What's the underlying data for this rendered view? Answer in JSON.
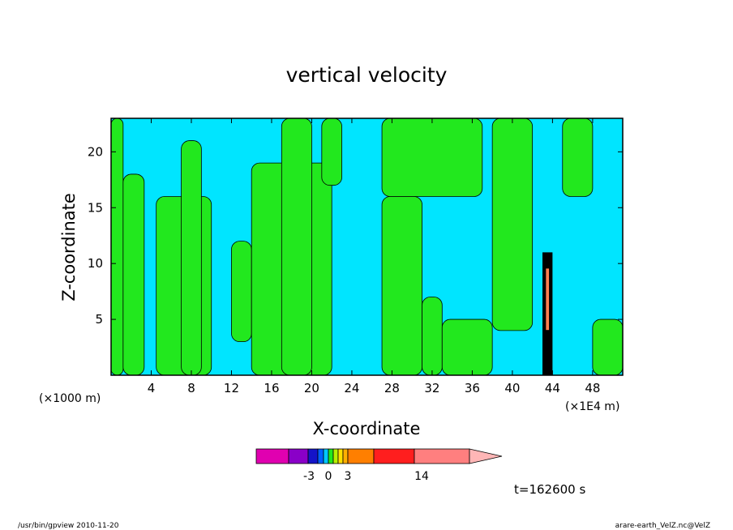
{
  "chart_data": {
    "type": "heatmap",
    "title": "vertical velocity",
    "xlabel": "X-coordinate",
    "ylabel": "Z-coordinate",
    "x_unit_left": "(×1000 m)",
    "x_unit_right": "(×1E4 m)",
    "xlim": [
      0,
      51
    ],
    "ylim": [
      0,
      23
    ],
    "x_ticks": [
      4,
      8,
      12,
      16,
      20,
      24,
      28,
      32,
      36,
      40,
      44,
      48
    ],
    "y_ticks": [
      5,
      10,
      15,
      20
    ],
    "background_color": "#00e5ff",
    "positive_color": "#22e81e",
    "positive_regions": [
      {
        "x0": 0,
        "x1": 1.2,
        "y0": 0,
        "y1": 23
      },
      {
        "x0": 1.2,
        "x1": 3.3,
        "y0": 0,
        "y1": 18
      },
      {
        "x0": 4.5,
        "x1": 10,
        "y0": 0,
        "y1": 16
      },
      {
        "x0": 7,
        "x1": 9,
        "y0": 0,
        "y1": 21
      },
      {
        "x0": 12,
        "x1": 14,
        "y0": 3,
        "y1": 12
      },
      {
        "x0": 14,
        "x1": 22,
        "y0": 0,
        "y1": 19
      },
      {
        "x0": 17,
        "x1": 20,
        "y0": 0,
        "y1": 23
      },
      {
        "x0": 21,
        "x1": 23,
        "y0": 17,
        "y1": 23
      },
      {
        "x0": 27,
        "x1": 37,
        "y0": 16,
        "y1": 23
      },
      {
        "x0": 27,
        "x1": 31,
        "y0": 0,
        "y1": 16
      },
      {
        "x0": 31,
        "x1": 33,
        "y0": 0,
        "y1": 7
      },
      {
        "x0": 33,
        "x1": 38,
        "y0": 0,
        "y1": 5
      },
      {
        "x0": 38,
        "x1": 42,
        "y0": 4,
        "y1": 23
      },
      {
        "x0": 45,
        "x1": 48,
        "y0": 16,
        "y1": 23
      },
      {
        "x0": 48,
        "x1": 51,
        "y0": 0,
        "y1": 5
      }
    ],
    "strong_core": {
      "x": [
        43,
        44
      ],
      "y": [
        0,
        11
      ],
      "color": "#000000",
      "core_color": "#ff7f50"
    },
    "colorbar": {
      "colors": [
        "#e000b0",
        "#8a00c8",
        "#1414c8",
        "#0060ff",
        "#00c8ff",
        "#22e81e",
        "#b8f000",
        "#ffe000",
        "#ffb000",
        "#ff7f00",
        "#ff1e1e",
        "#ff7f7f",
        "#ffb6b6"
      ],
      "labels": [
        "-3",
        "0",
        "3",
        "14"
      ]
    }
  },
  "time_label": "t=162600 s",
  "footer_left": "/usr/bin/gpview   2010-11-20",
  "footer_right": "arare-earth_VelZ.nc@VelZ"
}
